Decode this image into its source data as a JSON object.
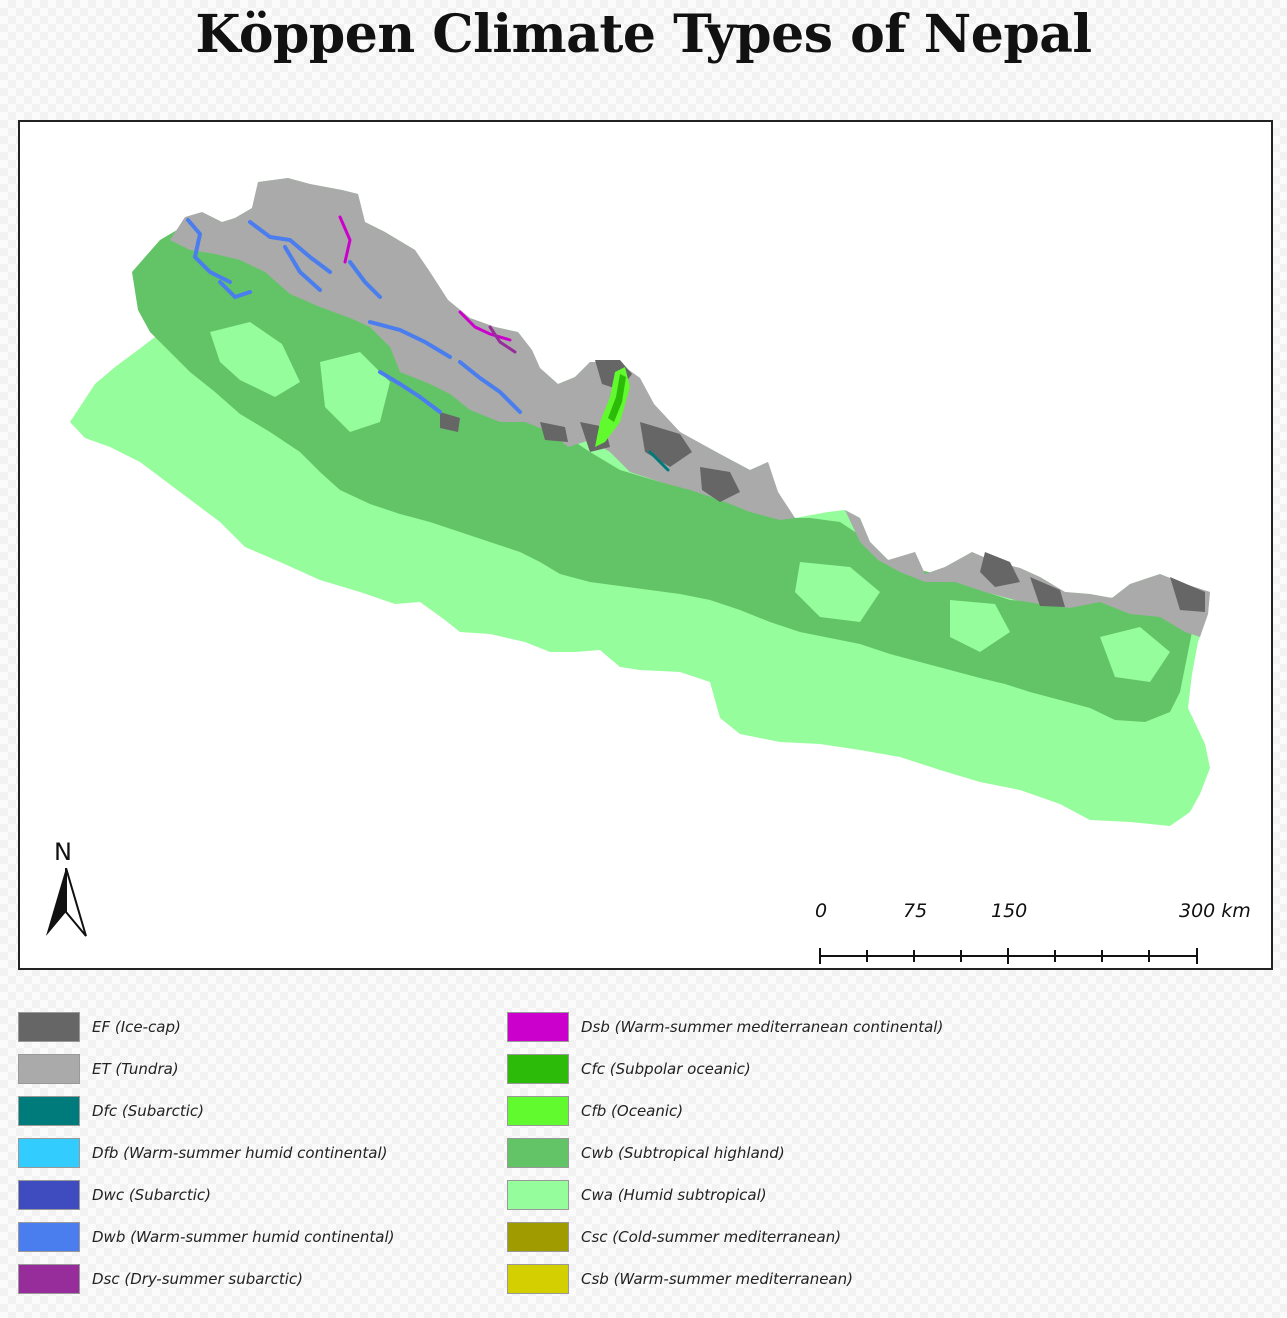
{
  "title": "Köppen Climate Types of Nepal",
  "north_label": "N",
  "scale": {
    "labels": [
      "0",
      "75",
      "150",
      "300 km"
    ],
    "values_km": [
      0,
      75,
      150,
      300
    ]
  },
  "colors": {
    "EF": "#666666",
    "ET": "#aaaaaa",
    "Dfc": "#007b7b",
    "Dfb": "#33ccff",
    "Dwc": "#3f4cbf",
    "Dwb": "#4a7dee",
    "Dsc": "#962d9a",
    "Dsb": "#cc00cc",
    "Cfc": "#2dbb0a",
    "Cfb": "#61fa2f",
    "Cwb": "#62c466",
    "Cwa": "#95fd9b",
    "Csc": "#a09c00",
    "Csb": "#d4cf00"
  },
  "legend": {
    "left": [
      {
        "code": "EF",
        "label": "EF (Ice-cap)",
        "color": "#666666"
      },
      {
        "code": "ET",
        "label": "ET (Tundra)",
        "color": "#aaaaaa"
      },
      {
        "code": "Dfc",
        "label": "Dfc (Subarctic)",
        "color": "#007b7b"
      },
      {
        "code": "Dfb",
        "label": "Dfb (Warm-summer humid continental)",
        "color": "#33ccff"
      },
      {
        "code": "Dwc",
        "label": "Dwc (Subarctic)",
        "color": "#3f4cbf"
      },
      {
        "code": "Dwb",
        "label": "Dwb (Warm-summer humid continental)",
        "color": "#4a7dee"
      },
      {
        "code": "Dsc",
        "label": "Dsc (Dry-summer subarctic)",
        "color": "#962d9a"
      }
    ],
    "right": [
      {
        "code": "Dsb",
        "label": "Dsb (Warm-summer mediterranean continental)",
        "color": "#cc00cc"
      },
      {
        "code": "Cfc",
        "label": "Cfc (Subpolar oceanic)",
        "color": "#2dbb0a"
      },
      {
        "code": "Cfb",
        "label": "Cfb (Oceanic)",
        "color": "#61fa2f"
      },
      {
        "code": "Cwb",
        "label": "Cwb (Subtropical highland)",
        "color": "#62c466"
      },
      {
        "code": "Cwa",
        "label": "Cwa (Humid subtropical)",
        "color": "#95fd9b"
      },
      {
        "code": "Csc",
        "label": "Csc (Cold-summer mediterranean)",
        "color": "#a09c00"
      },
      {
        "code": "Csb",
        "label": "Csb (Warm-summer mediterranean)",
        "color": "#d4cf00"
      }
    ]
  }
}
